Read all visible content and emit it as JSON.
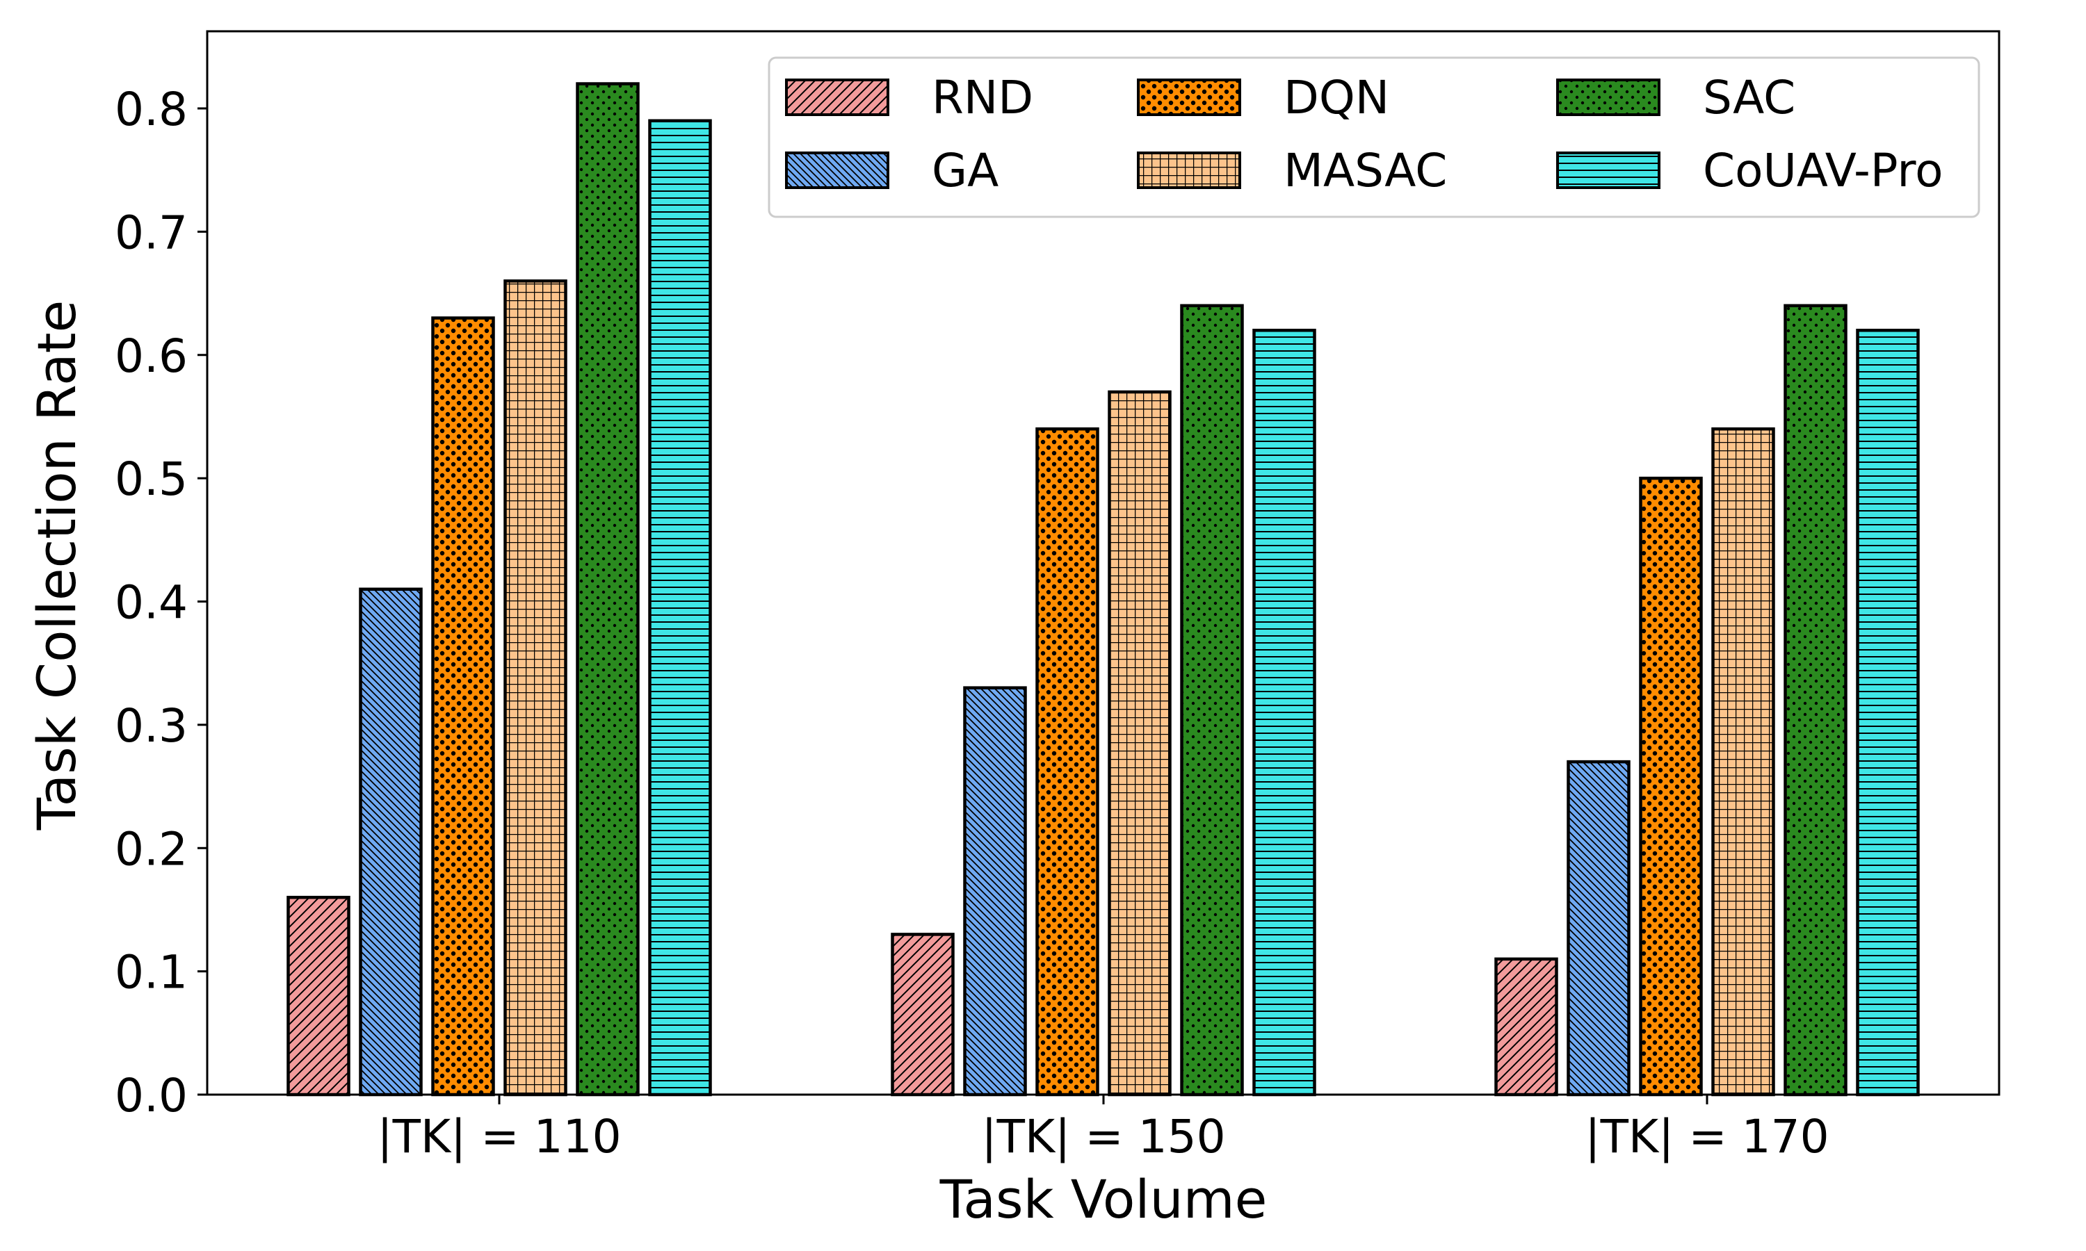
{
  "chart_data": {
    "type": "bar",
    "xlabel": "Task Volume",
    "ylabel": "Task Collection Rate",
    "categories": [
      "|TK| = 110",
      "|TK| = 150",
      "|TK| = 170"
    ],
    "ylim": [
      0,
      0.86
    ],
    "yticks": [
      "0.0",
      "0.1",
      "0.2",
      "0.3",
      "0.4",
      "0.5",
      "0.6",
      "0.7",
      "0.8"
    ],
    "grid": false,
    "legend_position": "top-right",
    "series": [
      {
        "name": "RND",
        "values": [
          0.16,
          0.13,
          0.11
        ],
        "color": "#f29b9b",
        "pattern": "diagonal-hatch"
      },
      {
        "name": "GA",
        "values": [
          0.41,
          0.33,
          0.27
        ],
        "color": "#6fa9f2",
        "pattern": "dense-backslash-hatch"
      },
      {
        "name": "DQN",
        "values": [
          0.63,
          0.54,
          0.5
        ],
        "color": "#ff8c00",
        "pattern": "dots"
      },
      {
        "name": "MASAC",
        "values": [
          0.66,
          0.57,
          0.54
        ],
        "color": "#fcc48c",
        "pattern": "grid"
      },
      {
        "name": "SAC",
        "values": [
          0.82,
          0.64,
          0.64
        ],
        "color": "#2a8a1f",
        "pattern": "small-dots"
      },
      {
        "name": "CoUAV-Pro",
        "values": [
          0.79,
          0.62,
          0.62
        ],
        "color": "#3fe6e6",
        "pattern": "horizontal-lines"
      }
    ]
  }
}
